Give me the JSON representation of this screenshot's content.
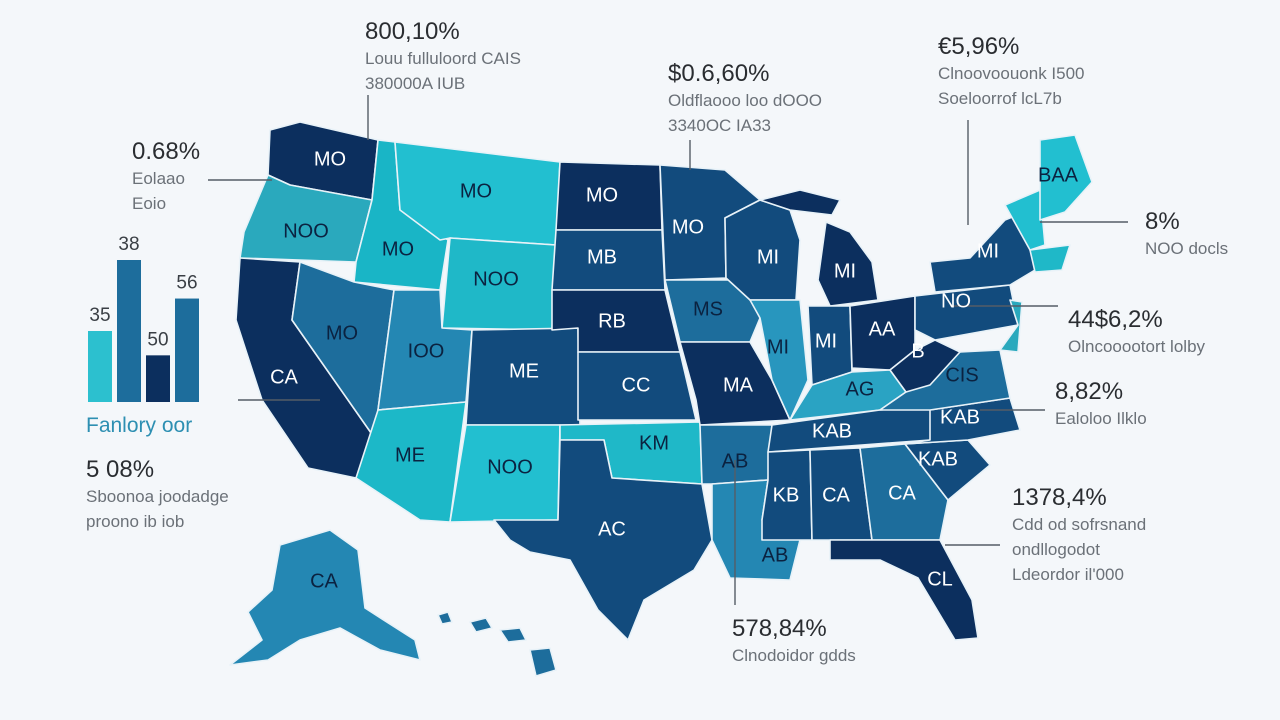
{
  "colors": {
    "navy": "#0c2f5e",
    "dark_blue": "#124b7d",
    "mid_blue": "#1d6d9c",
    "teal_blue": "#2b8fb6",
    "cyan": "#19b5c6",
    "light_cyan": "#2cc9d4",
    "background": "#f4f7fa"
  },
  "map_labels": {
    "wa": "MO",
    "or": "NOO",
    "ca": "CA",
    "id": "MO",
    "nv": "MO",
    "mt": "MO",
    "wy": "NOO",
    "ut": "IOO",
    "az": "ME",
    "co": "ME",
    "nm": "NOO",
    "nd": "MO",
    "sd": "MB",
    "ne": "RB",
    "ks": "CC",
    "ok": "KM",
    "tx": "AC",
    "mn": "MO",
    "ia": "MS",
    "mo": "MA",
    "ar": "AB",
    "la": "AB",
    "wi": "MI",
    "il": "MI",
    "mi": "MI",
    "in": "MI",
    "oh": "AA",
    "ky": "AG",
    "tn": "KAB",
    "ms": "KB",
    "al": "CA",
    "ga": "CA",
    "fl": "CL",
    "sc": "KAB",
    "nc": "KAB",
    "va": "CIS",
    "wv": "B",
    "pa": "NO",
    "ny": "MI",
    "me": "BAA",
    "ak": "CA"
  },
  "callouts": [
    {
      "value": "800,10%",
      "lines": [
        "Louu fulluloord CAIS",
        "380000A IUB"
      ]
    },
    {
      "value": "$0.6,60%",
      "lines": [
        "Oldflaooo loo dOOO",
        "3340OC IA33"
      ]
    },
    {
      "value": "€5,96%",
      "lines": [
        "Clnoovoouonk I500",
        "Soeloorrof lcL7b"
      ]
    },
    {
      "value": "0.68%",
      "lines": [
        "Eolaao",
        "Eoio"
      ]
    },
    {
      "value": "8%",
      "lines": [
        "NOO docls"
      ]
    },
    {
      "value": "44$6,2%",
      "lines": [
        "Olncooootort lolby"
      ]
    },
    {
      "value": "8,82%",
      "lines": [
        "Ealoloo Ilklo"
      ]
    },
    {
      "value": "5 08%",
      "lines": [
        "Sboonoa joodadge",
        "proono ib iob"
      ]
    },
    {
      "value": "1378,4%",
      "lines": [
        "Cdd od sofrsnand",
        "ondllogodot",
        "Ldeordor il'000"
      ]
    },
    {
      "value": "578,84%",
      "lines": [
        "Clnodoidor gdds"
      ]
    }
  ],
  "bar_chart": {
    "title": "Fanlory oor",
    "bars": [
      {
        "label": "35",
        "value": 35,
        "color": "#2cc0cf"
      },
      {
        "label": "38",
        "value": 70,
        "color": "#1d6d9c"
      },
      {
        "label": "50",
        "value": 23,
        "color": "#0c2f5e"
      },
      {
        "label": "56",
        "value": 51,
        "color": "#1d6d9c"
      }
    ]
  }
}
